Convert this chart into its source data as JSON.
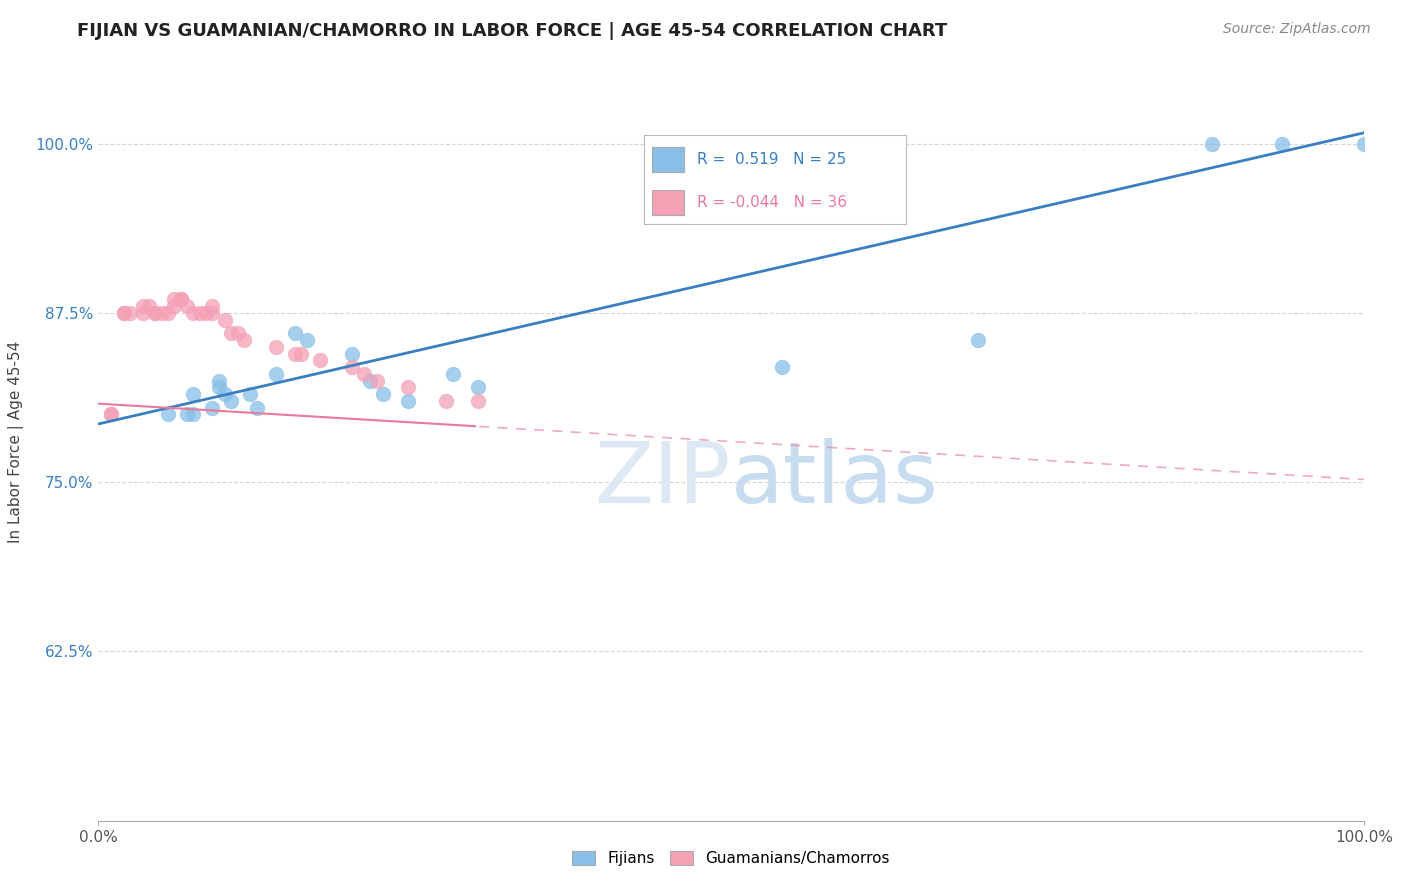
{
  "title": "FIJIAN VS GUAMANIAN/CHAMORRO IN LABOR FORCE | AGE 45-54 CORRELATION CHART",
  "source": "Source: ZipAtlas.com",
  "ylabel": "In Labor Force | Age 45-54",
  "xlim": [
    0.0,
    1.0
  ],
  "ylim": [
    0.5,
    1.06
  ],
  "xtick_labels": [
    "0.0%",
    "100.0%"
  ],
  "xtick_vals": [
    0.0,
    1.0
  ],
  "ytick_labels": [
    "62.5%",
    "75.0%",
    "87.5%",
    "100.0%"
  ],
  "ytick_vals": [
    0.625,
    0.75,
    0.875,
    1.0
  ],
  "fijian_color": "#87bfe8",
  "chamorro_color": "#f4a0b5",
  "fijian_line_color": "#3a7fc1",
  "chamorro_line_color": "#e87a9a",
  "R_fijian": 0.519,
  "N_fijian": 25,
  "R_chamorro": -0.044,
  "N_chamorro": 36,
  "fijian_x": [
    0.055,
    0.07,
    0.075,
    0.075,
    0.09,
    0.095,
    0.095,
    0.1,
    0.105,
    0.12,
    0.125,
    0.14,
    0.155,
    0.165,
    0.2,
    0.215,
    0.225,
    0.245,
    0.28,
    0.3,
    0.54,
    0.695,
    0.88,
    0.935,
    1.0
  ],
  "fijian_y": [
    0.8,
    0.8,
    0.8,
    0.815,
    0.805,
    0.82,
    0.825,
    0.815,
    0.81,
    0.815,
    0.805,
    0.83,
    0.86,
    0.855,
    0.845,
    0.825,
    0.815,
    0.81,
    0.83,
    0.82,
    0.835,
    0.855,
    1.0,
    1.0,
    1.0
  ],
  "chamorro_x": [
    0.01,
    0.01,
    0.02,
    0.02,
    0.025,
    0.035,
    0.035,
    0.04,
    0.045,
    0.045,
    0.05,
    0.055,
    0.06,
    0.06,
    0.065,
    0.065,
    0.07,
    0.075,
    0.08,
    0.085,
    0.09,
    0.09,
    0.1,
    0.105,
    0.11,
    0.115,
    0.14,
    0.155,
    0.16,
    0.175,
    0.2,
    0.21,
    0.22,
    0.245,
    0.275,
    0.3
  ],
  "chamorro_y": [
    0.8,
    0.8,
    0.875,
    0.875,
    0.875,
    0.875,
    0.88,
    0.88,
    0.875,
    0.875,
    0.875,
    0.875,
    0.88,
    0.885,
    0.885,
    0.885,
    0.88,
    0.875,
    0.875,
    0.875,
    0.875,
    0.88,
    0.87,
    0.86,
    0.86,
    0.855,
    0.85,
    0.845,
    0.845,
    0.84,
    0.835,
    0.83,
    0.825,
    0.82,
    0.81,
    0.81
  ],
  "background_color": "#ffffff",
  "grid_color": "#bbbbbb",
  "watermark_color": "#dde8f5",
  "title_fontsize": 13,
  "source_fontsize": 10,
  "tick_fontsize": 11,
  "ylabel_fontsize": 11
}
